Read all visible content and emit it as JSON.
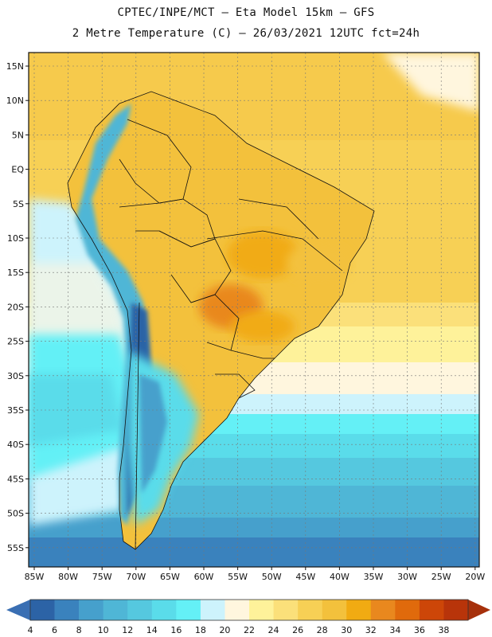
{
  "title_line1": "CPTEC/INPE/MCT –  Eta Model 15km – GFS",
  "title_line2": "2 Metre Temperature (C) – 26/03/2021 12UTC fct=24h",
  "lat_labels": [
    "15N",
    "10N",
    "5N",
    "EQ",
    "5S",
    "10S",
    "15S",
    "20S",
    "25S",
    "30S",
    "35S",
    "40S",
    "45S",
    "50S",
    "55S"
  ],
  "lon_labels": [
    "85W",
    "80W",
    "75W",
    "70W",
    "65W",
    "60W",
    "55W",
    "50W",
    "45W",
    "40W",
    "35W",
    "30W",
    "25W",
    "20W"
  ],
  "colorbar": {
    "ticks": [
      "4",
      "6",
      "8",
      "10",
      "12",
      "14",
      "16",
      "18",
      "20",
      "22",
      "24",
      "26",
      "28",
      "30",
      "32",
      "34",
      "36",
      "38"
    ],
    "colors": [
      "#2c63a6",
      "#3a82bd",
      "#46a0cc",
      "#4fb6d6",
      "#55c8df",
      "#5adcea",
      "#64f0f6",
      "#cdf3fc",
      "#fff6de",
      "#fef29a",
      "#fbe07a",
      "#f7d055",
      "#f3c13c",
      "#f1ab12",
      "#e9881e",
      "#e06a0c",
      "#cd4608",
      "#b8340a"
    ]
  },
  "legend": {
    "map_regions": "South America, eastern Pacific and western Atlantic"
  }
}
